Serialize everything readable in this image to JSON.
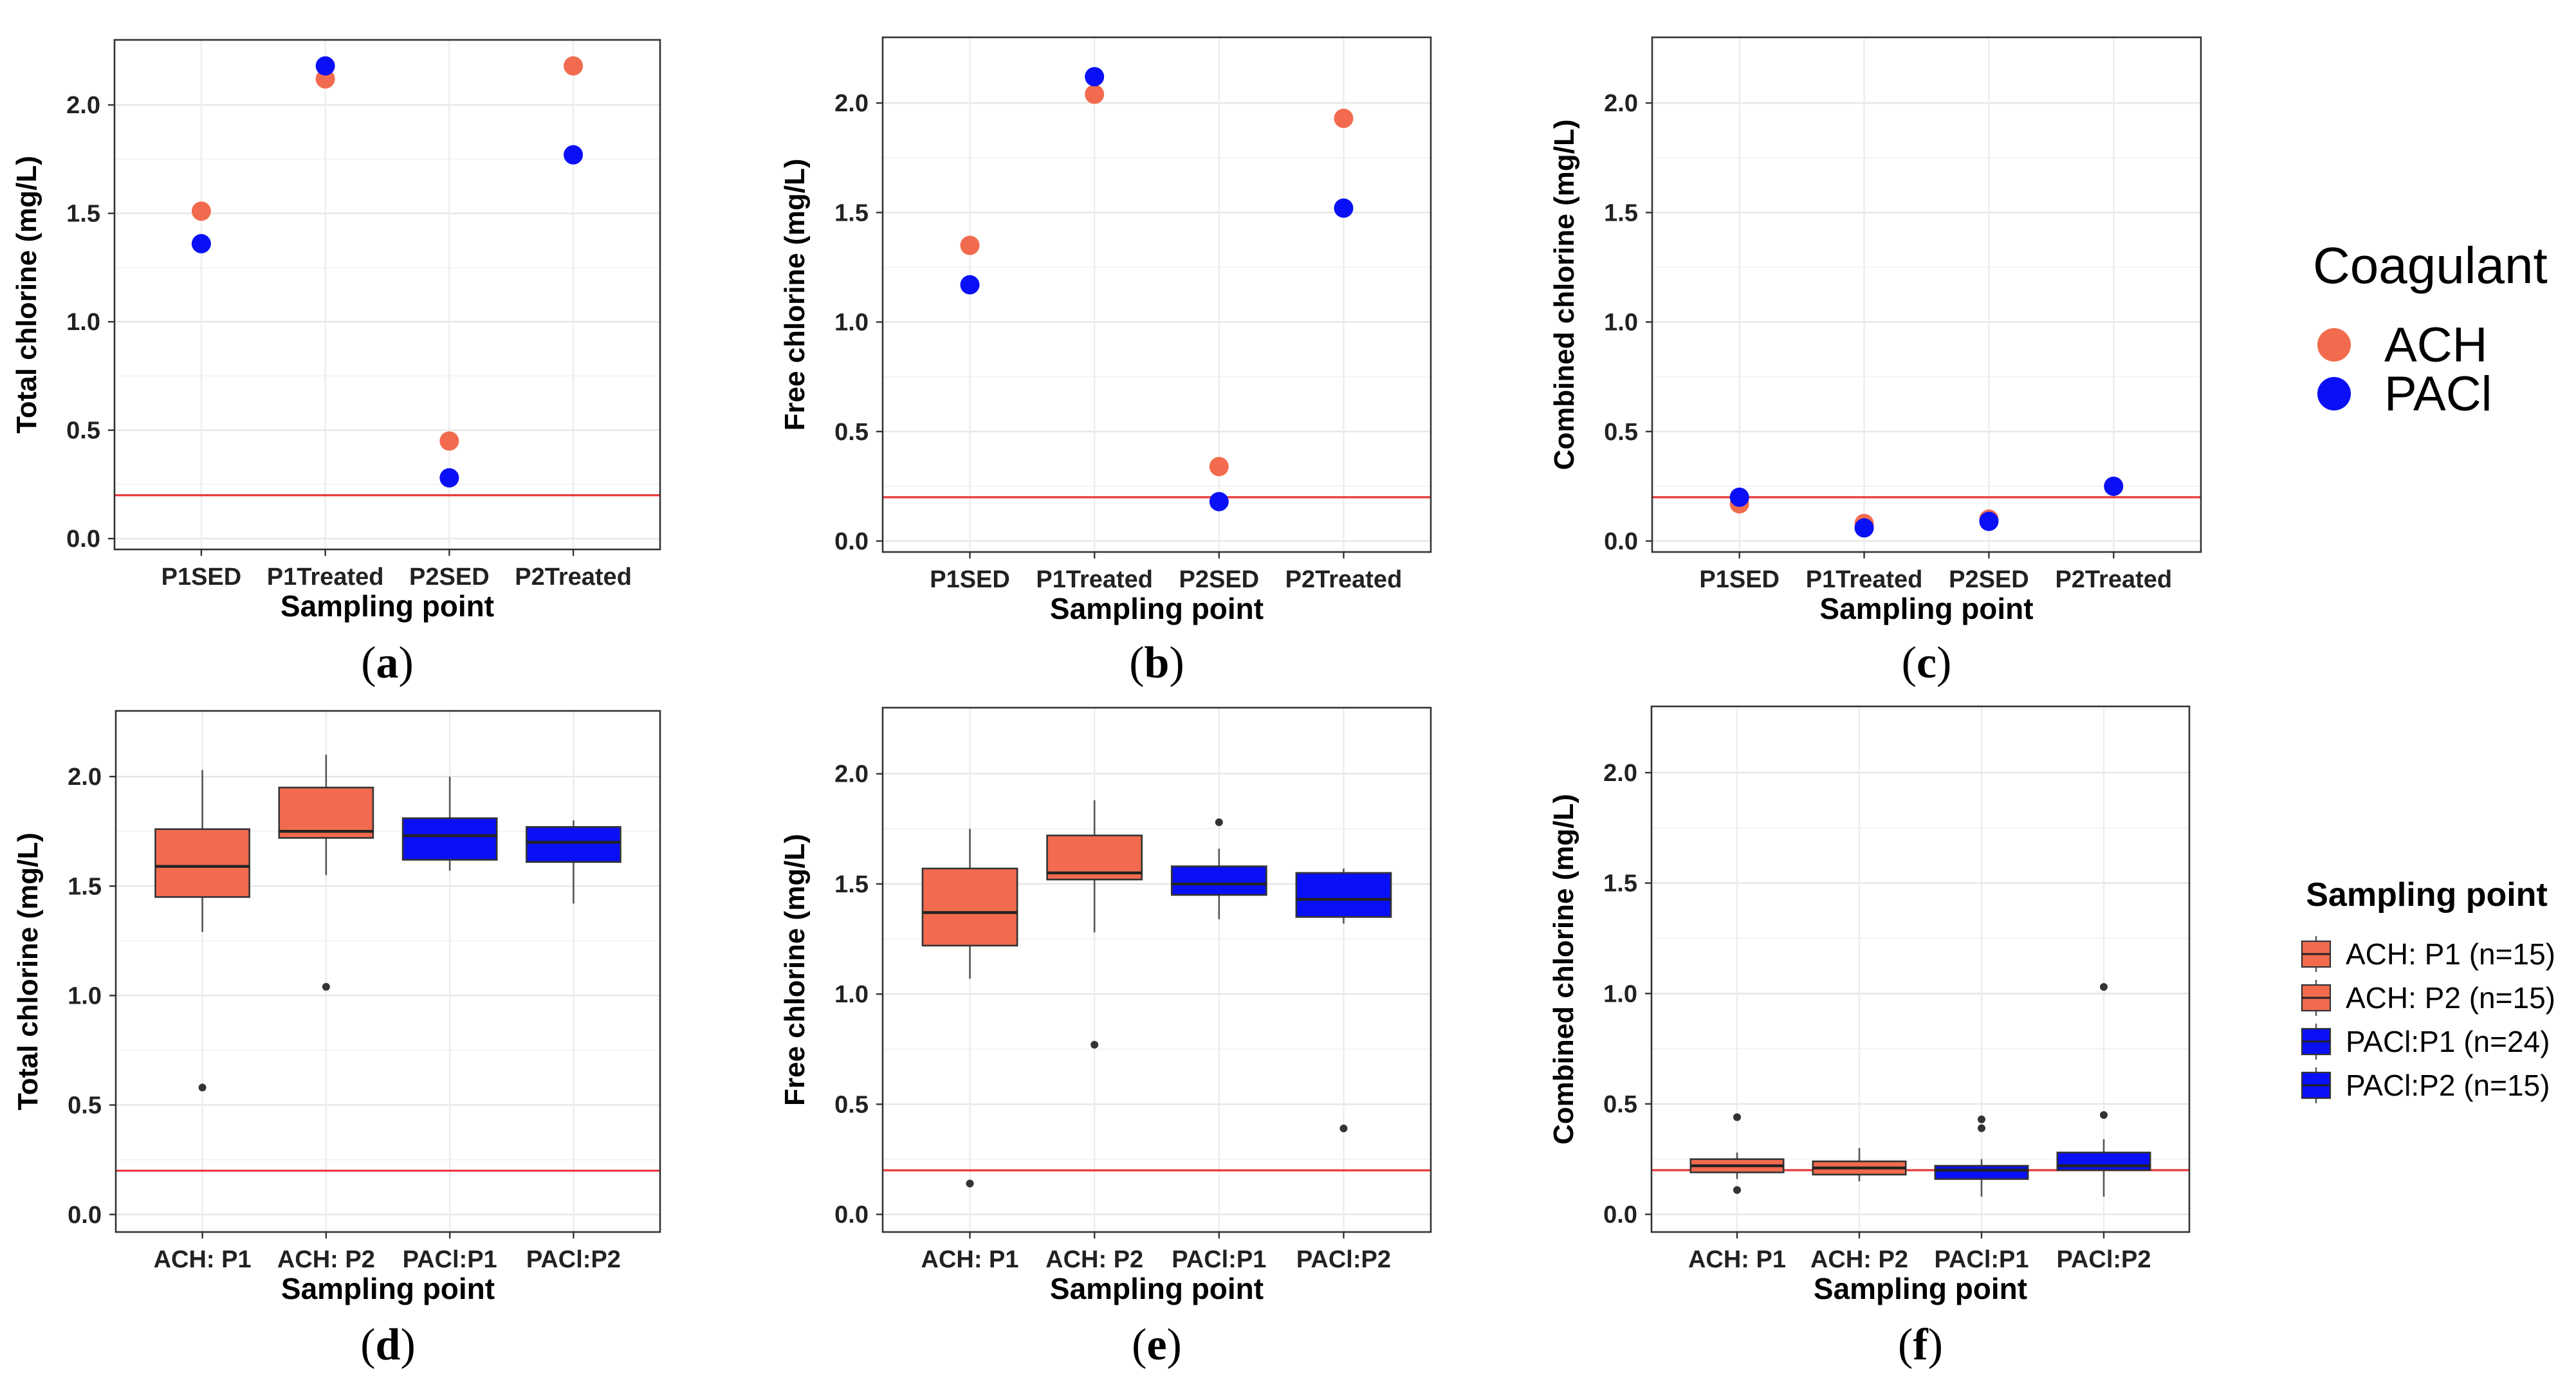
{
  "colors": {
    "ach": "#F26B4E",
    "paci": "#0A10F5",
    "threshold": "#E8383A"
  },
  "chart_data": [
    {
      "panel": "(a)",
      "type": "scatter",
      "ylabel": "Total chlorine (mg/L)",
      "xlabel": "Sampling point",
      "ylim": [
        -0.05,
        2.3
      ],
      "yticks": [
        "0.0",
        "0.5",
        "1.0",
        "1.5",
        "2.0"
      ],
      "categories": [
        "P1SED",
        "P1Treated",
        "P2SED",
        "P2Treated"
      ],
      "threshold": 0.2,
      "series": [
        {
          "name": "ACH",
          "values": [
            1.51,
            2.12,
            0.45,
            2.18
          ]
        },
        {
          "name": "PACl",
          "values": [
            1.36,
            2.18,
            0.28,
            1.77
          ]
        }
      ]
    },
    {
      "panel": "(b)",
      "type": "scatter",
      "ylabel": "Free chlorine (mg/L)",
      "xlabel": "Sampling point",
      "ylim": [
        -0.05,
        2.3
      ],
      "yticks": [
        "0.0",
        "0.5",
        "1.0",
        "1.5",
        "2.0"
      ],
      "categories": [
        "P1SED",
        "P1Treated",
        "P2SED",
        "P2Treated"
      ],
      "threshold": 0.2,
      "series": [
        {
          "name": "ACH",
          "values": [
            1.35,
            2.04,
            0.34,
            1.93
          ]
        },
        {
          "name": "PACl",
          "values": [
            1.17,
            2.12,
            0.18,
            1.52
          ]
        }
      ]
    },
    {
      "panel": "(c)",
      "type": "scatter",
      "ylabel": "Combined chlorine (mg/L)",
      "xlabel": "Sampling point",
      "ylim": [
        -0.05,
        2.3
      ],
      "yticks": [
        "0.0",
        "0.5",
        "1.0",
        "1.5",
        "2.0"
      ],
      "categories": [
        "P1SED",
        "P1Treated",
        "P2SED",
        "P2Treated"
      ],
      "threshold": 0.2,
      "series": [
        {
          "name": "ACH",
          "values": [
            0.17,
            0.08,
            0.1,
            0.25
          ]
        },
        {
          "name": "PACl",
          "values": [
            0.2,
            0.06,
            0.09,
            0.25
          ]
        }
      ]
    },
    {
      "panel": "(d)",
      "type": "box",
      "ylabel": "Total chlorine (mg/L)",
      "xlabel": "Sampling point",
      "ylim": [
        -0.08,
        2.3
      ],
      "yticks": [
        "0.0",
        "0.5",
        "1.0",
        "1.5",
        "2.0"
      ],
      "categories": [
        "ACH: P1",
        "ACH: P2",
        "PACl:P1",
        "PACl:P2"
      ],
      "threshold": 0.2,
      "boxes": [
        {
          "group": "ACH",
          "low": 1.29,
          "q1": 1.45,
          "median": 1.59,
          "q3": 1.76,
          "high": 2.03,
          "outliers": [
            0.58
          ]
        },
        {
          "group": "ACH",
          "low": 1.55,
          "q1": 1.72,
          "median": 1.75,
          "q3": 1.95,
          "high": 2.1,
          "outliers": [
            1.04
          ]
        },
        {
          "group": "PACl",
          "low": 1.57,
          "q1": 1.62,
          "median": 1.73,
          "q3": 1.81,
          "high": 2.0,
          "outliers": []
        },
        {
          "group": "PACl",
          "low": 1.42,
          "q1": 1.61,
          "median": 1.7,
          "q3": 1.77,
          "high": 1.8,
          "outliers": []
        }
      ]
    },
    {
      "panel": "(e)",
      "type": "box",
      "ylabel": "Free chlorine (mg/L)",
      "xlabel": "Sampling point",
      "ylim": [
        -0.08,
        2.3
      ],
      "yticks": [
        "0.0",
        "0.5",
        "1.0",
        "1.5",
        "2.0"
      ],
      "categories": [
        "ACH: P1",
        "ACH: P2",
        "PACl:P1",
        "PACl:P2"
      ],
      "threshold": 0.2,
      "boxes": [
        {
          "group": "ACH",
          "low": 1.07,
          "q1": 1.22,
          "median": 1.37,
          "q3": 1.57,
          "high": 1.75,
          "outliers": [
            0.14
          ]
        },
        {
          "group": "ACH",
          "low": 1.28,
          "q1": 1.52,
          "median": 1.55,
          "q3": 1.72,
          "high": 1.88,
          "outliers": [
            0.77
          ]
        },
        {
          "group": "PACl",
          "low": 1.34,
          "q1": 1.45,
          "median": 1.5,
          "q3": 1.58,
          "high": 1.66,
          "outliers": [
            1.78
          ]
        },
        {
          "group": "PACl",
          "low": 1.32,
          "q1": 1.35,
          "median": 1.43,
          "q3": 1.55,
          "high": 1.57,
          "outliers": [
            0.39
          ]
        }
      ]
    },
    {
      "panel": "(f)",
      "type": "box",
      "ylabel": "Combined chlorine (mg/L)",
      "xlabel": "Sampling point",
      "ylim": [
        -0.08,
        2.3
      ],
      "yticks": [
        "0.0",
        "0.5",
        "1.0",
        "1.5",
        "2.0"
      ],
      "categories": [
        "ACH: P1",
        "ACH: P2",
        "PACl:P1",
        "PACl:P2"
      ],
      "threshold": 0.2,
      "boxes": [
        {
          "group": "ACH",
          "low": 0.16,
          "q1": 0.19,
          "median": 0.22,
          "q3": 0.25,
          "high": 0.28,
          "outliers": [
            0.44,
            0.11
          ]
        },
        {
          "group": "ACH",
          "low": 0.15,
          "q1": 0.18,
          "median": 0.21,
          "q3": 0.24,
          "high": 0.3,
          "outliers": []
        },
        {
          "group": "PACl",
          "low": 0.08,
          "q1": 0.16,
          "median": 0.2,
          "q3": 0.22,
          "high": 0.25,
          "outliers": [
            0.43,
            0.39
          ]
        },
        {
          "group": "PACl",
          "low": 0.08,
          "q1": 0.2,
          "median": 0.22,
          "q3": 0.28,
          "high": 0.34,
          "outliers": [
            1.03,
            0.45
          ]
        }
      ]
    }
  ],
  "legend_top": {
    "title": "Coagulant",
    "items": [
      {
        "label": "ACH",
        "group": "ACH"
      },
      {
        "label": "PACl",
        "group": "PACl"
      }
    ]
  },
  "legend_bottom": {
    "title": "Sampling point",
    "items": [
      {
        "label": "ACH: P1 (n=15)",
        "group": "ACH"
      },
      {
        "label": "ACH: P2 (n=15)",
        "group": "ACH"
      },
      {
        "label": "PACl:P1 (n=24)",
        "group": "PACl"
      },
      {
        "label": "PACl:P2 (n=15)",
        "group": "PACl"
      }
    ]
  }
}
